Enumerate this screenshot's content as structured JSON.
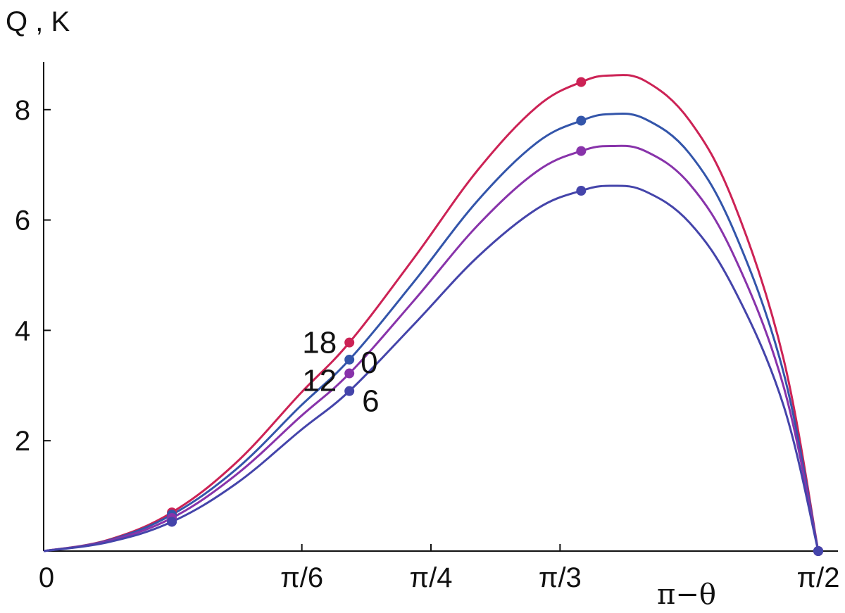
{
  "chart_data": {
    "type": "line",
    "ylabel": "Q , K",
    "xlabel": "π−θ",
    "xlim": [
      0,
      1.5708
    ],
    "ylim": [
      0,
      8.8
    ],
    "x_ticks": [
      {
        "value": 0,
        "label": "0"
      },
      {
        "value": 0.5236,
        "label": "π/6"
      },
      {
        "value": 0.7854,
        "label": "π/4"
      },
      {
        "value": 1.0472,
        "label": "π/3"
      },
      {
        "value": 1.5708,
        "label": "π/2"
      }
    ],
    "y_ticks": [
      {
        "value": 2,
        "label": "2"
      },
      {
        "value": 4,
        "label": "4"
      },
      {
        "value": 6,
        "label": "6"
      },
      {
        "value": 8,
        "label": "8"
      }
    ],
    "series": [
      {
        "name": "18",
        "color": "#cc2255",
        "x": [
          0,
          0.13,
          0.26,
          0.39,
          0.52,
          0.62,
          0.75,
          0.88,
          1.0,
          1.09,
          1.15,
          1.22,
          1.31,
          1.4,
          1.5,
          1.5708
        ],
        "y": [
          0,
          0.2,
          0.7,
          1.6,
          2.85,
          3.78,
          5.3,
          6.9,
          8.05,
          8.5,
          8.62,
          8.52,
          7.8,
          6.3,
          3.5,
          0
        ],
        "markers": [
          {
            "x": 0.26,
            "y": 0.7
          },
          {
            "x": 0.62,
            "y": 3.78
          },
          {
            "x": 1.09,
            "y": 8.5
          },
          {
            "x": 1.5708,
            "y": 0
          }
        ]
      },
      {
        "name": "0",
        "color": "#3355aa",
        "x": [
          0,
          0.13,
          0.26,
          0.39,
          0.52,
          0.62,
          0.75,
          0.88,
          1.0,
          1.09,
          1.15,
          1.22,
          1.31,
          1.4,
          1.5,
          1.5708
        ],
        "y": [
          0,
          0.19,
          0.66,
          1.48,
          2.62,
          3.47,
          4.87,
          6.35,
          7.4,
          7.8,
          7.92,
          7.83,
          7.2,
          5.8,
          3.25,
          0
        ],
        "markers": [
          {
            "x": 0.26,
            "y": 0.66
          },
          {
            "x": 0.62,
            "y": 3.47
          },
          {
            "x": 1.09,
            "y": 7.8
          },
          {
            "x": 1.5708,
            "y": 0
          }
        ]
      },
      {
        "name": "12",
        "color": "#8833aa",
        "x": [
          0,
          0.13,
          0.26,
          0.39,
          0.52,
          0.62,
          0.75,
          0.88,
          1.0,
          1.09,
          1.15,
          1.22,
          1.31,
          1.4,
          1.5,
          1.5708
        ],
        "y": [
          0,
          0.18,
          0.6,
          1.38,
          2.43,
          3.22,
          4.53,
          5.9,
          6.88,
          7.25,
          7.34,
          7.25,
          6.65,
          5.35,
          3.0,
          0
        ],
        "markers": [
          {
            "x": 0.26,
            "y": 0.6
          },
          {
            "x": 0.62,
            "y": 3.22
          },
          {
            "x": 1.09,
            "y": 7.25
          },
          {
            "x": 1.5708,
            "y": 0
          }
        ]
      },
      {
        "name": "6",
        "color": "#4444aa",
        "x": [
          0,
          0.13,
          0.26,
          0.39,
          0.52,
          0.62,
          0.75,
          0.88,
          1.0,
          1.09,
          1.15,
          1.22,
          1.31,
          1.4,
          1.5,
          1.5708
        ],
        "y": [
          0,
          0.16,
          0.53,
          1.22,
          2.18,
          2.9,
          4.1,
          5.33,
          6.2,
          6.53,
          6.62,
          6.52,
          5.95,
          4.75,
          2.65,
          0
        ],
        "markers": [
          {
            "x": 0.26,
            "y": 0.53
          },
          {
            "x": 0.62,
            "y": 2.9
          },
          {
            "x": 1.09,
            "y": 6.53
          },
          {
            "x": 1.5708,
            "y": 0
          }
        ]
      }
    ]
  }
}
